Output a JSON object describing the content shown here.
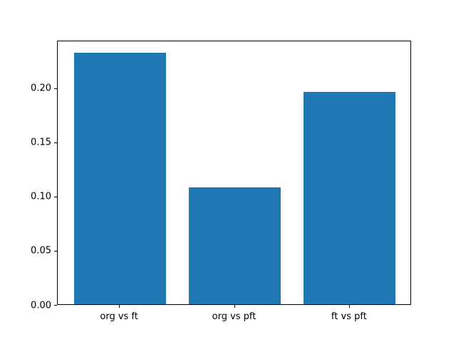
{
  "chart_data": {
    "type": "bar",
    "categories": [
      "org vs ft",
      "org vs pft",
      "ft vs pft"
    ],
    "values": [
      0.232,
      0.108,
      0.196
    ],
    "title": "",
    "xlabel": "",
    "ylabel": "",
    "ylim": [
      0,
      0.244
    ],
    "yticks": [
      0,
      0.05,
      0.1,
      0.15,
      0.2
    ],
    "ytick_labels": [
      "0.00",
      "0.05",
      "0.10",
      "0.15",
      "0.20"
    ],
    "bar_color": "#1f77b4",
    "grid": false,
    "legend": null
  }
}
